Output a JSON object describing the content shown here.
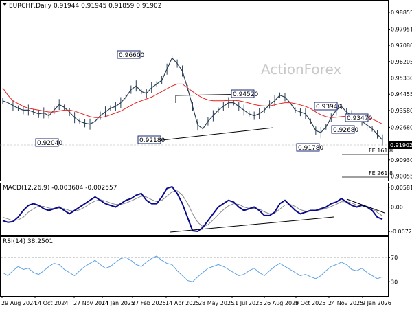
{
  "header": {
    "symbol": "EURCHF,Daily",
    "ohlc": "0.91944 0.91945 0.91859 0.91902"
  },
  "watermark": "ActionForex",
  "colors": {
    "price": "#2b3f55",
    "ma": "#e8221e",
    "macd": "#0a0a8c",
    "signal": "#888888",
    "rsi": "#5aa0e6",
    "level_box": "#1a2a7a",
    "current": "#000000"
  },
  "chart_data": [
    {
      "type": "line",
      "panel": "price",
      "ylim": [
        0.9,
        0.99
      ],
      "y_ticks": [
        "0.98855",
        "0.97951",
        "0.97080",
        "0.96205",
        "0.95330",
        "0.94455",
        "0.93580",
        "0.92680",
        "0.91805",
        "0.90930",
        "0.90055"
      ],
      "current": "0.91902",
      "levels": [
        "0.96600",
        "0.94520",
        "0.93940",
        "0.93470",
        "0.92680",
        "0.92180",
        "0.92040",
        "0.91780"
      ],
      "fe_labels": [
        "FE 161.8",
        "FE 261.8"
      ],
      "series": [
        {
          "values": [
            0.941,
            0.94,
            0.9385,
            0.937,
            0.936,
            0.936,
            0.935,
            0.934,
            0.9345,
            0.933,
            0.936,
            0.939,
            0.9375,
            0.935,
            0.932,
            0.93,
            0.929,
            0.9285,
            0.93,
            0.933,
            0.935,
            0.937,
            0.938,
            0.94,
            0.943,
            0.947,
            0.949,
            0.946,
            0.945,
            0.948,
            0.95,
            0.952,
            0.958,
            0.964,
            0.961,
            0.957,
            0.948,
            0.938,
            0.928,
            0.926,
            0.93,
            0.933,
            0.936,
            0.938,
            0.94,
            0.94,
            0.938,
            0.936,
            0.934,
            0.933,
            0.934,
            0.936,
            0.939,
            0.941,
            0.944,
            0.943,
            0.94,
            0.936,
            0.935,
            0.934,
            0.93,
            0.925,
            0.924,
            0.927,
            0.932,
            0.936,
            0.938,
            0.935,
            0.933,
            0.932,
            0.93,
            0.928,
            0.926,
            0.923,
            0.92
          ]
        },
        {
          "name": "",
          "values": [
            0.948,
            0.944,
            0.941,
            0.9395,
            0.938,
            0.937,
            0.9365,
            0.936,
            0.9355,
            0.935,
            0.935,
            0.9355,
            0.936,
            0.936,
            0.9355,
            0.9345,
            0.9335,
            0.9325,
            0.932,
            0.932,
            0.9325,
            0.9335,
            0.9345,
            0.9355,
            0.937,
            0.9385,
            0.94,
            0.941,
            0.942,
            0.943,
            0.9445,
            0.946,
            0.9475,
            0.949,
            0.95,
            0.95,
            0.948,
            0.946,
            0.944,
            0.9425,
            0.9415,
            0.941,
            0.941,
            0.941,
            0.9412,
            0.9412,
            0.941,
            0.9405,
            0.9398,
            0.939,
            0.9385,
            0.9382,
            0.9383,
            0.9388,
            0.9395,
            0.94,
            0.94,
            0.9395,
            0.9388,
            0.938,
            0.9368,
            0.935,
            0.9335,
            0.9325,
            0.932,
            0.9322,
            0.9325,
            0.9328,
            0.933,
            0.933,
            0.9328,
            0.9322,
            0.9312,
            0.93,
            0.9285
          ]
        }
      ],
      "annotations": [
        "trendline 0.9218 → 0.9291",
        "trendline 0.9452 → 0.9452"
      ]
    },
    {
      "type": "line",
      "panel": "macd",
      "title": "MACD(12,26,9) -0.003604 -0.002557",
      "ylim": [
        -0.0078,
        0.0064
      ],
      "y_ticks": [
        "0.005814",
        "0.00",
        "-0.007222"
      ],
      "series": [
        {
          "values": [
            -0.004,
            -0.0045,
            -0.0043,
            -0.003,
            -0.001,
            0.0005,
            0.001,
            0.0005,
            -0.0005,
            -0.001,
            -0.0005,
            0.0,
            -0.001,
            -0.002,
            -0.001,
            0.0,
            0.001,
            0.002,
            0.003,
            0.002,
            0.001,
            0.0005,
            0.0,
            0.001,
            0.002,
            0.0025,
            0.0035,
            0.004,
            0.002,
            0.001,
            0.001,
            0.003,
            0.0055,
            0.006,
            0.004,
            0.001,
            -0.003,
            -0.007,
            -0.0072,
            -0.006,
            -0.004,
            -0.002,
            0.0,
            0.001,
            0.002,
            0.0015,
            0.0,
            -0.001,
            -0.0005,
            0.0,
            -0.001,
            -0.0025,
            -0.0025,
            -0.0015,
            0.001,
            0.002,
            0.0005,
            -0.001,
            -0.002,
            -0.0015,
            -0.001,
            -0.001,
            -0.0005,
            0.0,
            0.001,
            0.0015,
            0.0025,
            0.0015,
            0.0005,
            0.0,
            0.0005,
            0.0,
            -0.001,
            -0.003,
            -0.0036
          ]
        },
        {
          "values": [
            -0.003,
            -0.0035,
            -0.004,
            -0.0038,
            -0.003,
            -0.0015,
            -0.0005,
            0.0003,
            0.0002,
            -0.0003,
            -0.0005,
            -0.0003,
            -0.0005,
            -0.001,
            -0.0012,
            -0.0008,
            0.0,
            0.001,
            0.0018,
            0.0022,
            0.0018,
            0.0012,
            0.0008,
            0.0008,
            0.0012,
            0.0018,
            0.0025,
            0.0032,
            0.003,
            0.0022,
            0.0016,
            0.002,
            0.0032,
            0.0045,
            0.0048,
            0.0035,
            0.0012,
            -0.002,
            -0.0045,
            -0.0058,
            -0.0052,
            -0.0038,
            -0.0022,
            -0.0008,
            0.0004,
            0.001,
            0.0008,
            0.0,
            -0.0004,
            -0.0004,
            -0.0006,
            -0.0014,
            -0.002,
            -0.0018,
            -0.0006,
            0.0006,
            0.0008,
            0.0002,
            -0.0008,
            -0.0012,
            -0.0012,
            -0.0011,
            -0.0008,
            -0.0004,
            0.0002,
            0.0008,
            0.0016,
            0.0016,
            0.0012,
            0.0006,
            0.0004,
            0.0002,
            -0.0004,
            -0.0016,
            -0.0026
          ]
        }
      ]
    },
    {
      "type": "line",
      "panel": "rsi",
      "title": "RSI(14) 38.2501",
      "ylim": [
        0,
        100
      ],
      "y_ticks": [
        "70",
        "30"
      ],
      "series": [
        {
          "values": [
            45,
            40,
            48,
            55,
            50,
            52,
            45,
            42,
            48,
            55,
            60,
            58,
            50,
            45,
            40,
            48,
            55,
            60,
            65,
            58,
            52,
            55,
            62,
            68,
            70,
            65,
            58,
            55,
            62,
            68,
            72,
            65,
            60,
            58,
            48,
            40,
            32,
            30,
            38,
            45,
            52,
            55,
            58,
            55,
            50,
            45,
            40,
            42,
            48,
            52,
            45,
            40,
            48,
            55,
            60,
            55,
            50,
            45,
            40,
            42,
            38,
            35,
            40,
            48,
            55,
            58,
            62,
            58,
            50,
            48,
            52,
            45,
            40,
            35,
            38
          ]
        }
      ]
    }
  ],
  "x_axis": {
    "labels": [
      "29 Aug 2024",
      "14 Oct 2024",
      "27 Nov 2024",
      "14 Jan 2025",
      "27 Feb 2025",
      "14 Apr 2025",
      "28 May 2025",
      "11 Jul 2025",
      "26 Aug 2025",
      "9 Oct 2025",
      "24 Nov 2025",
      "9 Jan 2026"
    ]
  }
}
